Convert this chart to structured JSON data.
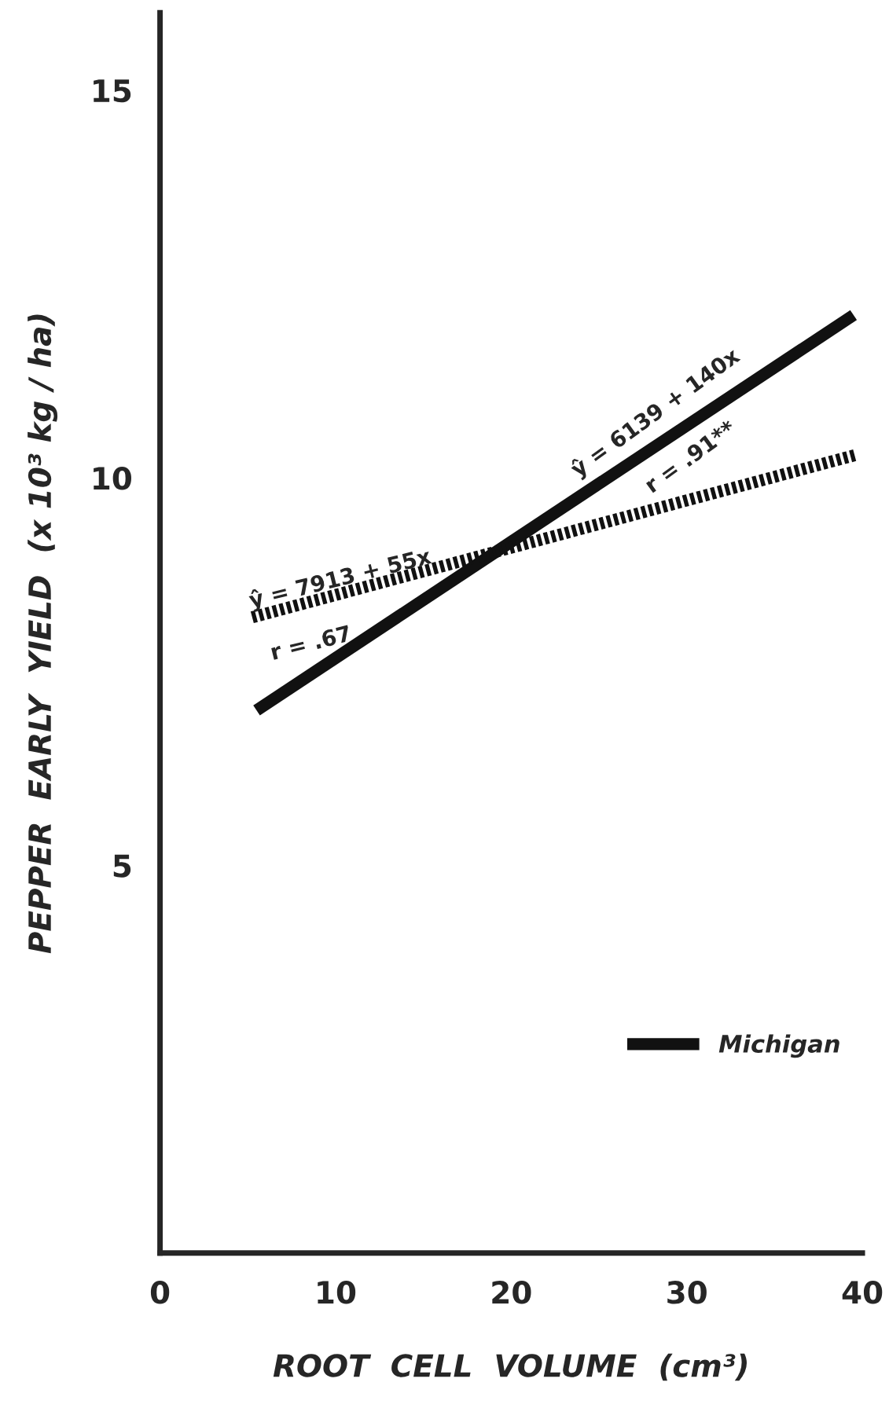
{
  "chart_data": {
    "type": "line",
    "xlabel": "ROOT  CELL  VOLUME  (cm³)",
    "ylabel": "PEPPER  EARLY  YIELD  (x 10³ kg / ha)",
    "series": [
      {
        "name": "Michigan",
        "color": "#111111",
        "line_style": "solid",
        "x": [
          5.5,
          39.5
        ],
        "values": [
          7.0,
          12.1
        ]
      },
      {
        "color": "#111111",
        "line_style": "dotted",
        "x": [
          5.25,
          39.7
        ],
        "values": [
          8.2,
          10.3
        ]
      }
    ],
    "xlim": [
      0,
      40
    ],
    "xticks": [
      0,
      10,
      20,
      30,
      40
    ],
    "ylim": [
      0,
      16
    ],
    "yticks": [
      5,
      10,
      15
    ],
    "annotations": [
      "ŷ = 6139 + 140x",
      "r = .91**",
      "ŷ = 7913 + 55x",
      "r = .67"
    ],
    "legend": "bottom right",
    "grid": false,
    "marker": "none"
  }
}
